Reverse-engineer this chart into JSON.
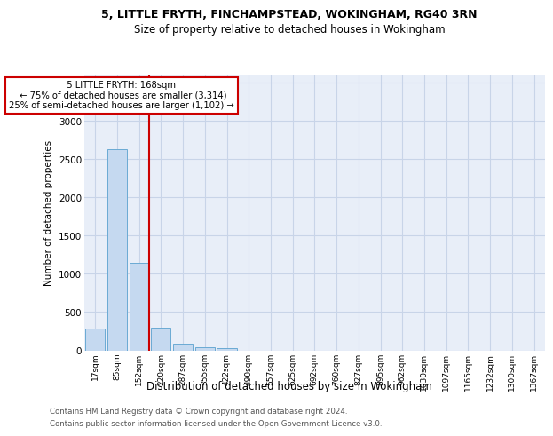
{
  "title_line1": "5, LITTLE FRYTH, FINCHAMPSTEAD, WOKINGHAM, RG40 3RN",
  "title_line2": "Size of property relative to detached houses in Wokingham",
  "xlabel": "Distribution of detached houses by size in Wokingham",
  "ylabel": "Number of detached properties",
  "categories": [
    "17sqm",
    "85sqm",
    "152sqm",
    "220sqm",
    "287sqm",
    "355sqm",
    "422sqm",
    "490sqm",
    "557sqm",
    "625sqm",
    "692sqm",
    "760sqm",
    "827sqm",
    "895sqm",
    "962sqm",
    "1030sqm",
    "1097sqm",
    "1165sqm",
    "1232sqm",
    "1300sqm",
    "1367sqm"
  ],
  "values": [
    290,
    2630,
    1140,
    300,
    85,
    40,
    28,
    0,
    0,
    0,
    0,
    0,
    0,
    0,
    0,
    0,
    0,
    0,
    0,
    0,
    0
  ],
  "bar_color": "#c5d9f0",
  "bar_edge_color": "#6aaad4",
  "marker_line_color": "#cc0000",
  "annotation_box_facecolor": "#ffffff",
  "annotation_box_edgecolor": "#cc0000",
  "ylim": [
    0,
    3600
  ],
  "yticks": [
    0,
    500,
    1000,
    1500,
    2000,
    2500,
    3000,
    3500
  ],
  "grid_color": "#c8d4e8",
  "background_color": "#e8eef8",
  "footer_line1": "Contains HM Land Registry data © Crown copyright and database right 2024.",
  "footer_line2": "Contains public sector information licensed under the Open Government Licence v3.0.",
  "marker_label": "5 LITTLE FRYTH: 168sqm",
  "annotation_line1": "← 75% of detached houses are smaller (3,314)",
  "annotation_line2": "25% of semi-detached houses are larger (1,102) →"
}
